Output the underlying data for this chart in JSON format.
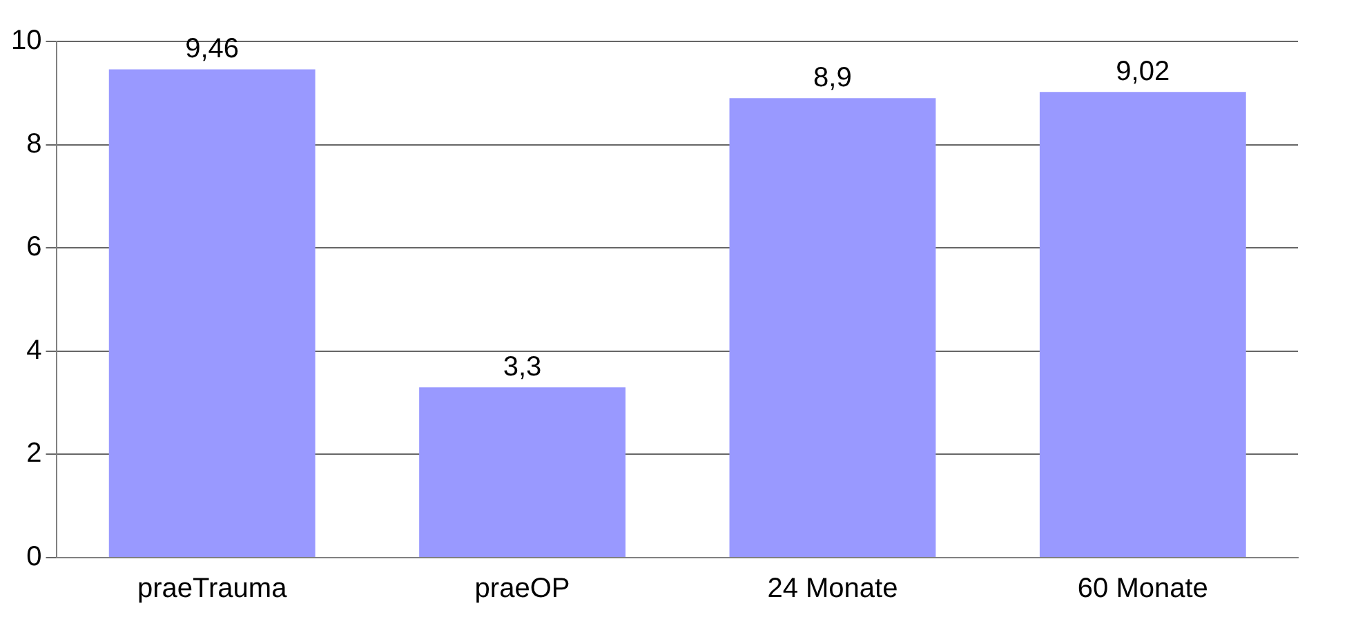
{
  "chart_data": {
    "type": "bar",
    "categories": [
      "praeTrauma",
      "praeOP",
      "24 Monate",
      "60 Monate"
    ],
    "values": [
      9.46,
      3.3,
      8.9,
      9.02
    ],
    "value_labels": [
      "9,46",
      "3,3",
      "8,9",
      "9,02"
    ],
    "color": "#9999ff",
    "ylim": [
      0,
      10
    ],
    "yticks": [
      0,
      2,
      4,
      6,
      8,
      10
    ],
    "grid": "y",
    "legend": false
  }
}
